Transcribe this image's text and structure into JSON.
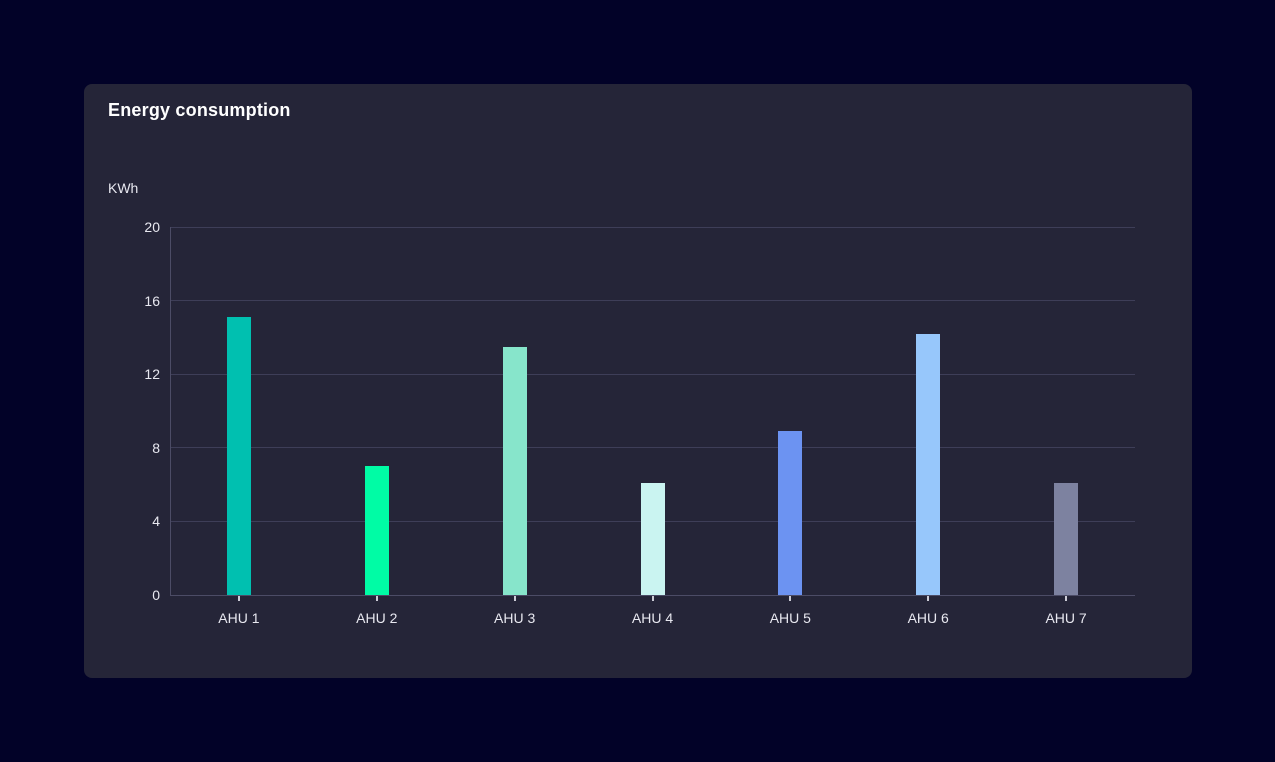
{
  "theme": {
    "page_background": "#020228",
    "card_background": "#252538",
    "title_color": "#ffffff",
    "label_color": "#e8e8f0",
    "gridline_color": "#3e3e58",
    "axis_line_color": "#4c4c66",
    "tick_mark_color": "#ccccd6"
  },
  "chart_data": {
    "type": "bar",
    "title": "Energy consumption",
    "ylabel": "KWh",
    "xlabel": "",
    "categories": [
      "AHU 1",
      "AHU 2",
      "AHU 3",
      "AHU 4",
      "AHU 5",
      "AHU 6",
      "AHU 7"
    ],
    "values": [
      15.1,
      7,
      13.5,
      6.1,
      8.9,
      14.2,
      6.1
    ],
    "bar_colors": [
      "#00c0b0",
      "#00fca5",
      "#87e5cb",
      "#caf4f1",
      "#6c93f2",
      "#97c7fb",
      "#7d82a0"
    ],
    "ylim": [
      0,
      20
    ],
    "yticks": [
      0,
      4,
      8,
      12,
      16,
      20
    ],
    "grid": true,
    "legend": false
  }
}
